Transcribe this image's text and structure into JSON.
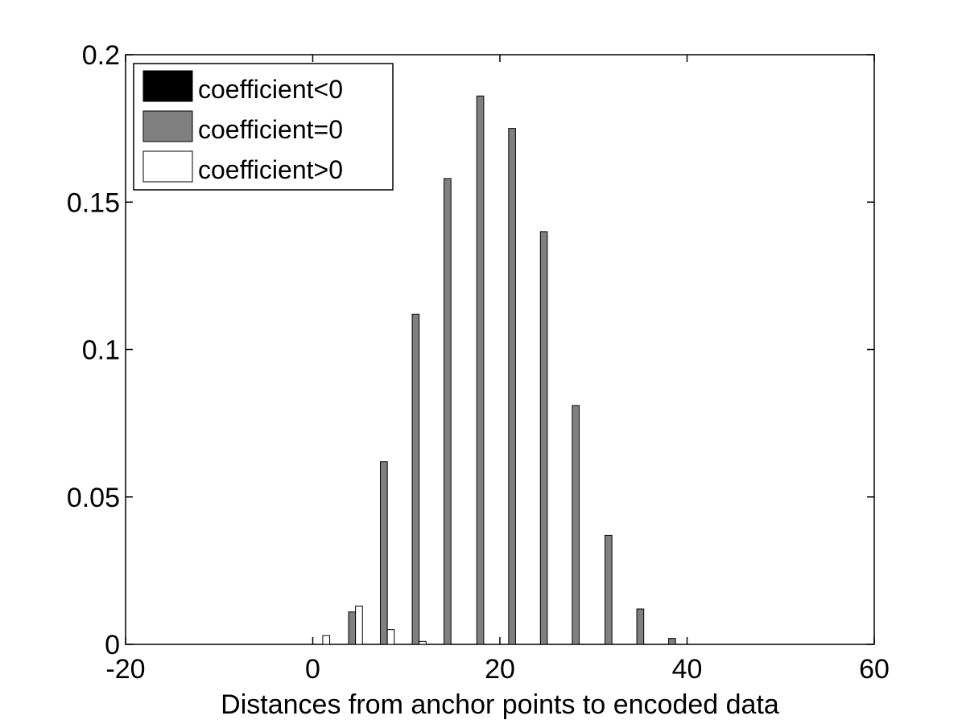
{
  "chart_data": {
    "type": "bar",
    "title": "",
    "xlabel": "Distances from anchor points to encoded data",
    "ylabel": "",
    "xlim": [
      -20,
      60
    ],
    "ylim": [
      0,
      0.2
    ],
    "grid": false,
    "legend_position": "top-left",
    "x_ticks": [
      "-20",
      "0",
      "20",
      "40",
      "60"
    ],
    "y_ticks": [
      "0",
      "0.05",
      "0.1",
      "0.15",
      "0.2"
    ],
    "x": [
      0.7,
      4.2,
      7.6,
      11.0,
      14.4,
      17.9,
      21.3,
      24.7,
      28.1,
      31.6,
      35.0,
      38.4,
      41.8,
      45.3,
      48.7
    ],
    "series": [
      {
        "name": "coefficient<0",
        "color": "#000000",
        "values": [
          0,
          0,
          0,
          0,
          0,
          0,
          0,
          0,
          0,
          0,
          0,
          0,
          0,
          0,
          0
        ]
      },
      {
        "name": "coefficient=0",
        "color": "#808080",
        "values": [
          0,
          0.011,
          0.062,
          0.112,
          0.158,
          0.186,
          0.175,
          0.14,
          0.081,
          0.037,
          0.012,
          0.002,
          0,
          0,
          0
        ]
      },
      {
        "name": "coefficient>0",
        "color": "#ffffff",
        "values": [
          0.003,
          0.013,
          0.005,
          0.001,
          0,
          0,
          0,
          0,
          0,
          0,
          0,
          0,
          0,
          0,
          0
        ]
      }
    ]
  }
}
